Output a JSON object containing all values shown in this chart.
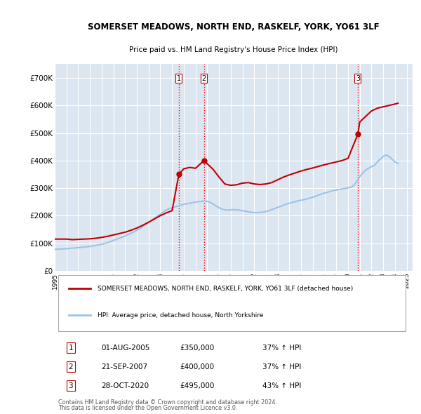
{
  "title": "SOMERSET MEADOWS, NORTH END, RASKELF, YORK, YO61 3LF",
  "subtitle": "Price paid vs. HM Land Registry's House Price Index (HPI)",
  "ylabel": "",
  "ylim": [
    0,
    750000
  ],
  "yticks": [
    0,
    100000,
    200000,
    300000,
    400000,
    500000,
    600000,
    700000
  ],
  "ytick_labels": [
    "£0",
    "£100K",
    "£200K",
    "£300K",
    "£400K",
    "£500K",
    "£600K",
    "£700K"
  ],
  "background_color": "#ffffff",
  "plot_bg_color": "#dce6f1",
  "grid_color": "#ffffff",
  "red_line_color": "#c00000",
  "blue_line_color": "#9dc3e6",
  "vline_color": "#ff0000",
  "vline_style": ":",
  "vline_purchases": [
    2005.58,
    2007.72,
    2020.83
  ],
  "purchase_labels": [
    "1",
    "2",
    "3"
  ],
  "legend_line1": "SOMERSET MEADOWS, NORTH END, RASKELF, YORK, YO61 3LF (detached house)",
  "legend_line2": "HPI: Average price, detached house, North Yorkshire",
  "table_data": [
    [
      "1",
      "01-AUG-2005",
      "£350,000",
      "37% ↑ HPI"
    ],
    [
      "2",
      "21-SEP-2007",
      "£400,000",
      "37% ↑ HPI"
    ],
    [
      "3",
      "28-OCT-2020",
      "£495,000",
      "43% ↑ HPI"
    ]
  ],
  "footer_line1": "Contains HM Land Registry data © Crown copyright and database right 2024.",
  "footer_line2": "This data is licensed under the Open Government Licence v3.0.",
  "hpi_years": [
    1995,
    1995.25,
    1995.5,
    1995.75,
    1996,
    1996.25,
    1996.5,
    1996.75,
    1997,
    1997.25,
    1997.5,
    1997.75,
    1998,
    1998.25,
    1998.5,
    1998.75,
    1999,
    1999.25,
    1999.5,
    1999.75,
    2000,
    2000.25,
    2000.5,
    2000.75,
    2001,
    2001.25,
    2001.5,
    2001.75,
    2002,
    2002.25,
    2002.5,
    2002.75,
    2003,
    2003.25,
    2003.5,
    2003.75,
    2004,
    2004.25,
    2004.5,
    2004.75,
    2005,
    2005.25,
    2005.5,
    2005.75,
    2006,
    2006.25,
    2006.5,
    2006.75,
    2007,
    2007.25,
    2007.5,
    2007.75,
    2008,
    2008.25,
    2008.5,
    2008.75,
    2009,
    2009.25,
    2009.5,
    2009.75,
    2010,
    2010.25,
    2010.5,
    2010.75,
    2011,
    2011.25,
    2011.5,
    2011.75,
    2012,
    2012.25,
    2012.5,
    2012.75,
    2013,
    2013.25,
    2013.5,
    2013.75,
    2014,
    2014.25,
    2014.5,
    2014.75,
    2015,
    2015.25,
    2015.5,
    2015.75,
    2016,
    2016.25,
    2016.5,
    2016.75,
    2017,
    2017.25,
    2017.5,
    2017.75,
    2018,
    2018.25,
    2018.5,
    2018.75,
    2019,
    2019.25,
    2019.5,
    2019.75,
    2020,
    2020.25,
    2020.5,
    2020.75,
    2021,
    2021.25,
    2021.5,
    2021.75,
    2022,
    2022.25,
    2022.5,
    2022.75,
    2023,
    2023.25,
    2023.5,
    2023.75,
    2024,
    2024.25
  ],
  "hpi_values": [
    78000,
    78500,
    79000,
    79500,
    80000,
    81000,
    82000,
    83000,
    84000,
    85000,
    86000,
    87000,
    88000,
    90000,
    92000,
    94000,
    96000,
    99000,
    102000,
    106000,
    110000,
    114000,
    118000,
    122000,
    126000,
    131000,
    136000,
    141000,
    147000,
    153000,
    160000,
    168000,
    175000,
    183000,
    191000,
    198000,
    205000,
    213000,
    220000,
    225000,
    229000,
    232000,
    235000,
    238000,
    241000,
    243000,
    245000,
    247000,
    249000,
    251000,
    252000,
    253000,
    252000,
    248000,
    242000,
    235000,
    229000,
    224000,
    221000,
    220000,
    221000,
    222000,
    221000,
    220000,
    218000,
    216000,
    214000,
    212000,
    211000,
    211000,
    212000,
    213000,
    215000,
    218000,
    222000,
    226000,
    230000,
    234000,
    238000,
    242000,
    245000,
    248000,
    251000,
    254000,
    256000,
    258000,
    261000,
    264000,
    267000,
    271000,
    275000,
    279000,
    282000,
    285000,
    288000,
    291000,
    293000,
    295000,
    297000,
    299000,
    301000,
    303000,
    310000,
    325000,
    342000,
    355000,
    365000,
    372000,
    378000,
    382000,
    395000,
    405000,
    415000,
    420000,
    415000,
    405000,
    395000,
    390000
  ],
  "red_years": [
    1995,
    1995.5,
    1996,
    1996.5,
    1997,
    1997.5,
    1998,
    1998.5,
    1999,
    1999.5,
    2000,
    2000.5,
    2001,
    2001.5,
    2002,
    2002.5,
    2003,
    2003.5,
    2004,
    2004.5,
    2005,
    2005.58,
    2006,
    2006.5,
    2007,
    2007.72,
    2008,
    2008.5,
    2009,
    2009.5,
    2010,
    2010.5,
    2011,
    2011.5,
    2012,
    2012.5,
    2013,
    2013.5,
    2014,
    2014.5,
    2015,
    2015.5,
    2016,
    2016.5,
    2017,
    2017.5,
    2018,
    2018.5,
    2019,
    2019.5,
    2020,
    2020.83,
    2021,
    2021.5,
    2022,
    2022.5,
    2023,
    2023.5,
    2024,
    2024.25
  ],
  "red_values": [
    115000,
    115000,
    115000,
    113000,
    114000,
    115000,
    116000,
    118000,
    121000,
    125000,
    130000,
    135000,
    140000,
    147000,
    155000,
    165000,
    176000,
    188000,
    200000,
    210000,
    218000,
    350000,
    370000,
    375000,
    372000,
    400000,
    388000,
    368000,
    340000,
    315000,
    310000,
    312000,
    318000,
    320000,
    315000,
    313000,
    315000,
    320000,
    330000,
    340000,
    348000,
    355000,
    362000,
    368000,
    373000,
    379000,
    385000,
    390000,
    395000,
    400000,
    408000,
    495000,
    540000,
    560000,
    580000,
    590000,
    595000,
    600000,
    605000,
    608000
  ],
  "xlim": [
    1995,
    2025.5
  ],
  "xticks": [
    1995,
    1996,
    1997,
    1998,
    1999,
    2000,
    2001,
    2002,
    2003,
    2004,
    2005,
    2006,
    2007,
    2008,
    2009,
    2010,
    2011,
    2012,
    2013,
    2014,
    2015,
    2016,
    2017,
    2018,
    2019,
    2020,
    2021,
    2022,
    2023,
    2024,
    2025
  ]
}
